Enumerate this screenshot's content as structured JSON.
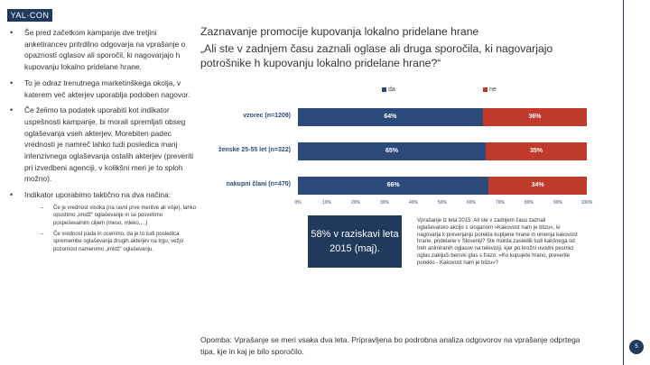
{
  "logo": "YAL·CON",
  "left_bullets": [
    "Še pred začetkom kampanje dve tretjini anketirancev pritrdilno odgovarja na vprašanje o opaznosti oglasov ali sporočil, ki nagovarjajo h kupovanju lokalno pridelane hrane.",
    "To je odraz trenutnega marketinškega okolja, v katerem več akterjev uporablja podoben nagovor.",
    "Če želimo ta podatek uporabiti kot indikator uspešnosti kampanje, bi morali spremljati obseg oglaševanja vseh akterjev. Morebiten padec vrednosti je namreč lahko tudi posledica manj intenzivnega oglaševanja ostalih akterjev (preveriti pri izvedbeni agenciji, v kolikšni meri je to sploh možno).",
    "Indikator uporabimo taktično na dva načina:"
  ],
  "sub_items": [
    "Če je vrednost visoka (na ravni prve meritve ali višje), lahko opustimo „imidž“ oglaševanje in se posvetimo pospeševalnim ciljem (meso, mleko,…)",
    "Če vrednost pada in ocenimo, da je to tudi posledica spremembe oglaševanja drugih akterjev na trgu, vežjo pozornost namenimo „imidž“ oglaševanju."
  ],
  "title": "Zaznavanje promocije kupovanja lokalno pridelane hrane",
  "question": "„Ali ste v zadnjem času zaznali oglase ali druga sporočila, ki nagovarjajo potrošnike h kupovanju lokalno pridelane hrane?“",
  "colors": {
    "da": "#2b4a7a",
    "ne": "#c0392b",
    "brand": "#1f3a5c"
  },
  "chart_data": {
    "type": "bar",
    "orientation": "horizontal-stacked-100",
    "categories": [
      "vzorec (n=1209)",
      "ženske 25-55 let (n=322)",
      "nakupni člani (n=470)"
    ],
    "series": [
      {
        "name": "da",
        "values": [
          64,
          65,
          66
        ],
        "labels": [
          "64%",
          "65%",
          "66%"
        ]
      },
      {
        "name": "ne",
        "values": [
          36,
          35,
          34
        ],
        "labels": [
          "36%",
          "35%",
          "34%"
        ]
      }
    ],
    "xlim": [
      0,
      100
    ],
    "xticks": [
      "0%",
      "10%",
      "20%",
      "30%",
      "40%",
      "50%",
      "60%",
      "70%",
      "80%",
      "90%",
      "100%"
    ]
  },
  "highlight_box": "58% v raziskavi leta 2015 (maj).",
  "question_2015": "Vprašanje iz leta 2015: Ali ste v zadnjem času zaznali oglaševalsko akcijo s sloganom »Kakovost nam je blizu«, ki nagovarja k preverjanju porekla kupljene hrane in omenja kakovost hrane, pridelane v Sloveniji? Ste morda zasledili tudi kakšnega od treh animiranih oglasov na televiziji, kjer po krožni uvodni pesmici oglas zaključi benski glas s frazo: »Ko kupujete hrano, preverite poreklo - Kakovost nam je blizu«?",
  "footnote": "Opomba: Vprašanje se meri vsaka dva leta. Pripravljena bo podrobna analiza odgovorov na vprašanje odprtega tipa, kje in kaj je bilo sporočilo.",
  "page_number": "5"
}
